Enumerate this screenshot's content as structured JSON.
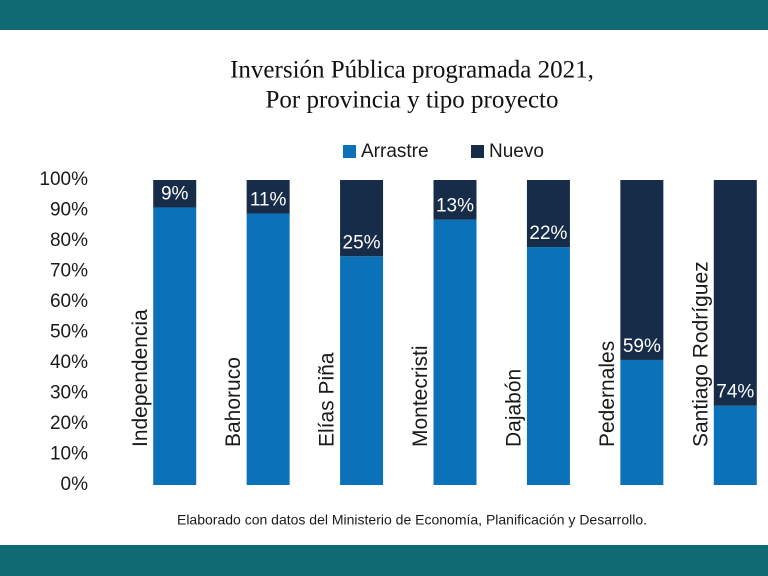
{
  "chart_data": {
    "type": "stacked-bar",
    "title": [
      "Inversión Pública programada 2021,",
      "Por provincia y tipo proyecto"
    ],
    "categories": [
      "Independencia",
      "Bahoruco",
      "Elías Piña",
      "Montecristi",
      "Dajabón",
      "Pedernales",
      "Santiago Rodríguez"
    ],
    "series": [
      {
        "name": "Arrastre",
        "color": "#0b72ba",
        "values": [
          91,
          89,
          75,
          87,
          78,
          41,
          26
        ]
      },
      {
        "name": "Nuevo",
        "color": "#172c48",
        "values": [
          9,
          11,
          25,
          13,
          22,
          59,
          74
        ],
        "value_labels": [
          "9%",
          "11%",
          "25%",
          "13%",
          "22%",
          "59%",
          "74%"
        ]
      }
    ],
    "ylim": [
      0,
      100
    ],
    "yticks": [
      {
        "value": 0,
        "label": "0%"
      },
      {
        "value": 10,
        "label": "10%"
      },
      {
        "value": 20,
        "label": "20%"
      },
      {
        "value": 30,
        "label": "30%"
      },
      {
        "value": 40,
        "label": "40%"
      },
      {
        "value": 50,
        "label": "50%"
      },
      {
        "value": 60,
        "label": "60%"
      },
      {
        "value": 70,
        "label": "70%"
      },
      {
        "value": 80,
        "label": "80%"
      },
      {
        "value": 90,
        "label": "90%"
      },
      {
        "value": 100,
        "label": "100%"
      }
    ],
    "legend": "top",
    "source": "Elaborado con datos del Ministerio de Economía, Planificación y Desarrollo."
  }
}
